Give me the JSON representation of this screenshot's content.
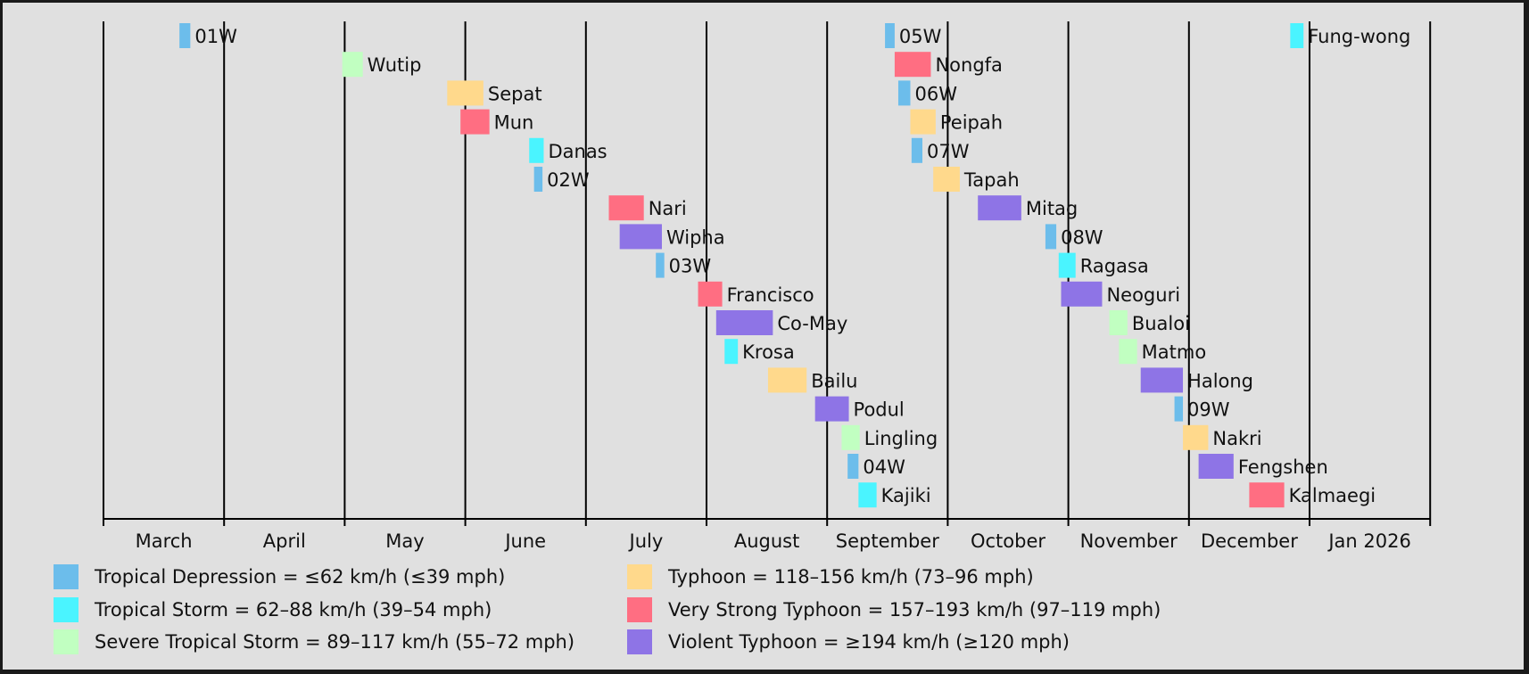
{
  "chart_data": {
    "type": "timeline",
    "months": [
      "March",
      "April",
      "May",
      "June",
      "July",
      "August",
      "September",
      "October",
      "November",
      "December",
      "Jan 2026"
    ],
    "intensity_colors": {
      "TD": "#6cbdeb",
      "TS": "#4af4ff",
      "STS": "#c1ffc1",
      "TY": "#ffd98c",
      "VSTY": "#ff6e82",
      "VITY": "#8e74e6"
    },
    "storms": [
      {
        "name": "01W",
        "start": 0.63,
        "end": 0.72,
        "intensity": "TD"
      },
      {
        "name": "Wutip",
        "start": 1.98,
        "end": 2.15,
        "intensity": "STS"
      },
      {
        "name": "Sepat",
        "start": 2.85,
        "end": 3.15,
        "intensity": "TY"
      },
      {
        "name": "Mun",
        "start": 2.96,
        "end": 3.2,
        "intensity": "VSTY"
      },
      {
        "name": "Danas",
        "start": 3.53,
        "end": 3.65,
        "intensity": "TS"
      },
      {
        "name": "02W",
        "start": 3.57,
        "end": 3.64,
        "intensity": "TD"
      },
      {
        "name": "Nari",
        "start": 4.19,
        "end": 4.48,
        "intensity": "VSTY"
      },
      {
        "name": "Wipha",
        "start": 4.28,
        "end": 4.63,
        "intensity": "VITY"
      },
      {
        "name": "03W",
        "start": 4.58,
        "end": 4.65,
        "intensity": "TD"
      },
      {
        "name": "Francisco",
        "start": 4.93,
        "end": 5.13,
        "intensity": "VSTY"
      },
      {
        "name": "Co-May",
        "start": 5.08,
        "end": 5.55,
        "intensity": "VITY"
      },
      {
        "name": "Krosa",
        "start": 5.15,
        "end": 5.26,
        "intensity": "TS"
      },
      {
        "name": "Bailu",
        "start": 5.51,
        "end": 5.83,
        "intensity": "TY"
      },
      {
        "name": "Podul",
        "start": 5.9,
        "end": 6.18,
        "intensity": "VITY"
      },
      {
        "name": "Lingling",
        "start": 6.12,
        "end": 6.27,
        "intensity": "STS"
      },
      {
        "name": "04W",
        "start": 6.17,
        "end": 6.26,
        "intensity": "TD"
      },
      {
        "name": "Kajiki",
        "start": 6.26,
        "end": 6.41,
        "intensity": "TS"
      },
      {
        "name": "05W",
        "start": 6.48,
        "end": 6.56,
        "intensity": "TD"
      },
      {
        "name": "Nongfa",
        "start": 6.56,
        "end": 6.86,
        "intensity": "VSTY"
      },
      {
        "name": "06W",
        "start": 6.59,
        "end": 6.69,
        "intensity": "TD"
      },
      {
        "name": "Peipah",
        "start": 6.69,
        "end": 6.9,
        "intensity": "TY"
      },
      {
        "name": "07W",
        "start": 6.7,
        "end": 6.79,
        "intensity": "TD"
      },
      {
        "name": "Tapah",
        "start": 6.88,
        "end": 7.1,
        "intensity": "TY"
      },
      {
        "name": "Mitag",
        "start": 7.25,
        "end": 7.61,
        "intensity": "VITY"
      },
      {
        "name": "08W",
        "start": 7.81,
        "end": 7.9,
        "intensity": "TD"
      },
      {
        "name": "Ragasa",
        "start": 7.92,
        "end": 8.06,
        "intensity": "TS"
      },
      {
        "name": "Neoguri",
        "start": 7.94,
        "end": 8.28,
        "intensity": "VITY"
      },
      {
        "name": "Bualoi",
        "start": 8.34,
        "end": 8.49,
        "intensity": "STS"
      },
      {
        "name": "Matmo",
        "start": 8.42,
        "end": 8.57,
        "intensity": "STS"
      },
      {
        "name": "Halong",
        "start": 8.6,
        "end": 8.95,
        "intensity": "VITY"
      },
      {
        "name": "09W",
        "start": 8.88,
        "end": 8.95,
        "intensity": "TD"
      },
      {
        "name": "Nakri",
        "start": 8.95,
        "end": 9.16,
        "intensity": "TY"
      },
      {
        "name": "Fengshen",
        "start": 9.08,
        "end": 9.37,
        "intensity": "VITY"
      },
      {
        "name": "Kalmaegi",
        "start": 9.5,
        "end": 9.79,
        "intensity": "VSTY"
      },
      {
        "name": "Fung-wong",
        "start": 9.84,
        "end": 9.95,
        "intensity": "TS"
      }
    ]
  },
  "legend": [
    {
      "key": "TD",
      "label": "Tropical Depression = ≤62 km/h (≤39 mph)"
    },
    {
      "key": "TS",
      "label": "Tropical Storm = 62–88 km/h (39–54 mph)"
    },
    {
      "key": "STS",
      "label": "Severe Tropical Storm = 89–117 km/h (55–72 mph)"
    },
    {
      "key": "TY",
      "label": "Typhoon = 118–156 km/h (73–96 mph)"
    },
    {
      "key": "VSTY",
      "label": "Very Strong Typhoon = 157–193 km/h (97–119 mph)"
    },
    {
      "key": "VITY",
      "label": "Violent Typhoon = ≥194 km/h (≥120 mph)"
    }
  ]
}
